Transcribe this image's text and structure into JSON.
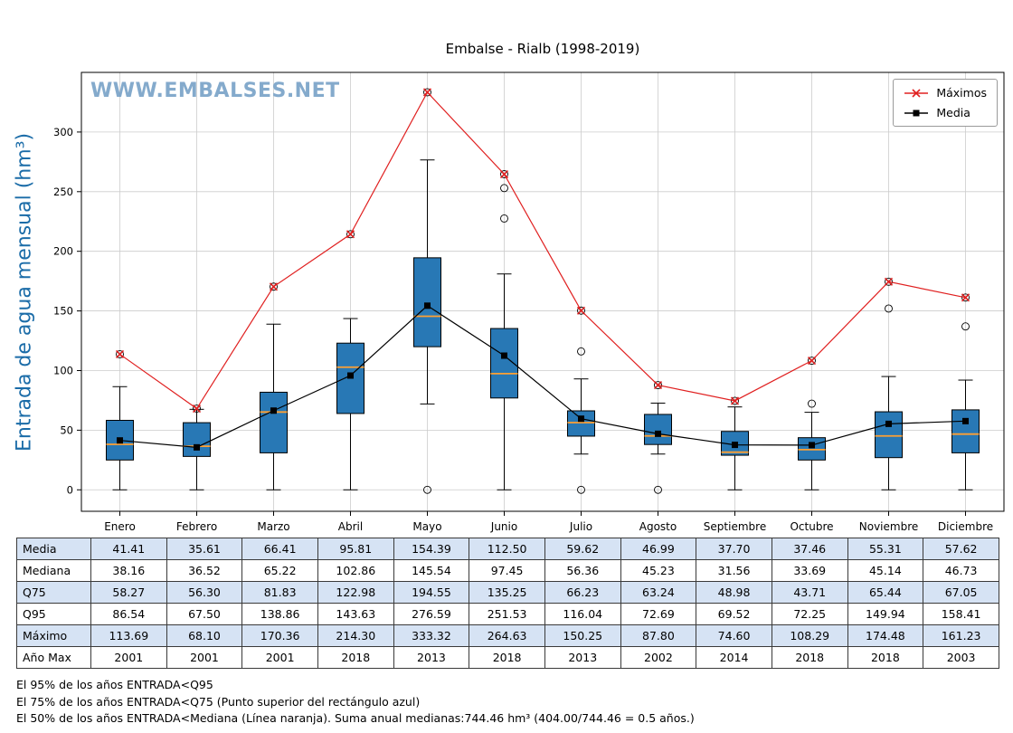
{
  "title": "Embalse - Rialb (1998-2019)",
  "watermark": "WWW.EMBALSES.NET",
  "axes": {
    "ylabel": "Entrada de agua mensual (hm³)",
    "yticks": [
      0,
      50,
      100,
      150,
      200,
      250,
      300
    ]
  },
  "legend": {
    "items": [
      {
        "label": "Máximos",
        "color": "#e02020",
        "marker": "x"
      },
      {
        "label": "Media",
        "color": "#000000",
        "marker": "square"
      }
    ]
  },
  "colors": {
    "box_fill": "#2878b5",
    "box_edge": "#000000",
    "median": "#ffa033",
    "max_line": "#e02020",
    "media_line": "#000000",
    "grid": "#cccccc",
    "table_alt_row": "#d6e3f4",
    "ylabel": "#1b6ca8",
    "watermark": "#6e9bc3"
  },
  "chart_data": {
    "type": "boxplot",
    "categories": [
      "Enero",
      "Febrero",
      "Marzo",
      "Abril",
      "Mayo",
      "Junio",
      "Julio",
      "Agosto",
      "Septiembre",
      "Octubre",
      "Noviembre",
      "Diciembre"
    ],
    "ylim": [
      -18,
      350
    ],
    "series": [
      {
        "name": "Máximos",
        "type": "line",
        "marker": "x",
        "color": "#e02020",
        "values": [
          113.69,
          68.1,
          170.36,
          214.3,
          333.32,
          264.63,
          150.25,
          87.8,
          74.6,
          108.29,
          174.48,
          161.23
        ]
      },
      {
        "name": "Media",
        "type": "line",
        "marker": "square",
        "color": "#000000",
        "values": [
          41.41,
          35.61,
          66.41,
          95.81,
          154.39,
          112.5,
          59.62,
          46.99,
          37.7,
          37.46,
          55.31,
          57.62
        ]
      }
    ],
    "boxes": {
      "q25": [
        25,
        28,
        31,
        64,
        120,
        77,
        45,
        38,
        29,
        25,
        27,
        31
      ],
      "median": [
        38.16,
        36.52,
        65.22,
        102.86,
        145.54,
        97.45,
        56.36,
        45.23,
        31.56,
        33.69,
        45.14,
        46.73
      ],
      "q75": [
        58.27,
        56.3,
        81.83,
        122.98,
        194.55,
        135.25,
        66.23,
        63.24,
        48.98,
        43.71,
        65.44,
        67.05
      ],
      "whisker_low": [
        0,
        0,
        0,
        0,
        72,
        0,
        30,
        30,
        0,
        0,
        0,
        0
      ],
      "whisker_high": [
        86.5,
        67.5,
        138.9,
        143.6,
        276.6,
        181,
        93,
        72.7,
        69.5,
        65,
        95,
        92
      ],
      "outliers": [
        [
          113.69
        ],
        [
          68.1
        ],
        [
          170.36
        ],
        [
          214.3
        ],
        [
          0,
          333.32
        ],
        [
          227.5,
          253,
          264.63
        ],
        [
          0,
          116.04,
          150.25
        ],
        [
          0,
          87.8
        ],
        [
          74.6
        ],
        [
          72.25,
          108.29
        ],
        [
          152,
          174.48
        ],
        [
          137,
          161.23
        ]
      ]
    }
  },
  "table": {
    "columns": [
      "Enero",
      "Febrero",
      "Marzo",
      "Abril",
      "Mayo",
      "Junio",
      "Julio",
      "Agosto",
      "Septiembre",
      "Octubre",
      "Noviembre",
      "Diciembre"
    ],
    "rows": [
      {
        "label": "Media",
        "values": [
          "41.41",
          "35.61",
          "66.41",
          "95.81",
          "154.39",
          "112.50",
          "59.62",
          "46.99",
          "37.70",
          "37.46",
          "55.31",
          "57.62"
        ]
      },
      {
        "label": "Mediana",
        "values": [
          "38.16",
          "36.52",
          "65.22",
          "102.86",
          "145.54",
          "97.45",
          "56.36",
          "45.23",
          "31.56",
          "33.69",
          "45.14",
          "46.73"
        ]
      },
      {
        "label": "Q75",
        "values": [
          "58.27",
          "56.30",
          "81.83",
          "122.98",
          "194.55",
          "135.25",
          "66.23",
          "63.24",
          "48.98",
          "43.71",
          "65.44",
          "67.05"
        ]
      },
      {
        "label": "Q95",
        "values": [
          "86.54",
          "67.50",
          "138.86",
          "143.63",
          "276.59",
          "251.53",
          "116.04",
          "72.69",
          "69.52",
          "72.25",
          "149.94",
          "158.41"
        ]
      },
      {
        "label": "Máximo",
        "values": [
          "113.69",
          "68.10",
          "170.36",
          "214.30",
          "333.32",
          "264.63",
          "150.25",
          "87.80",
          "74.60",
          "108.29",
          "174.48",
          "161.23"
        ]
      },
      {
        "label": "Año Max",
        "values": [
          "2001",
          "2001",
          "2001",
          "2018",
          "2013",
          "2018",
          "2013",
          "2002",
          "2014",
          "2018",
          "2018",
          "2003"
        ]
      }
    ]
  },
  "footnotes": [
    "El 95% de los años ENTRADA<Q95",
    "El 75% de los años ENTRADA<Q75 (Punto superior del rectángulo azul)",
    "El 50% de los años ENTRADA<Mediana (Línea naranja). Suma anual medianas:744.46 hm³ (404.00/744.46 = 0.5 años.)"
  ]
}
